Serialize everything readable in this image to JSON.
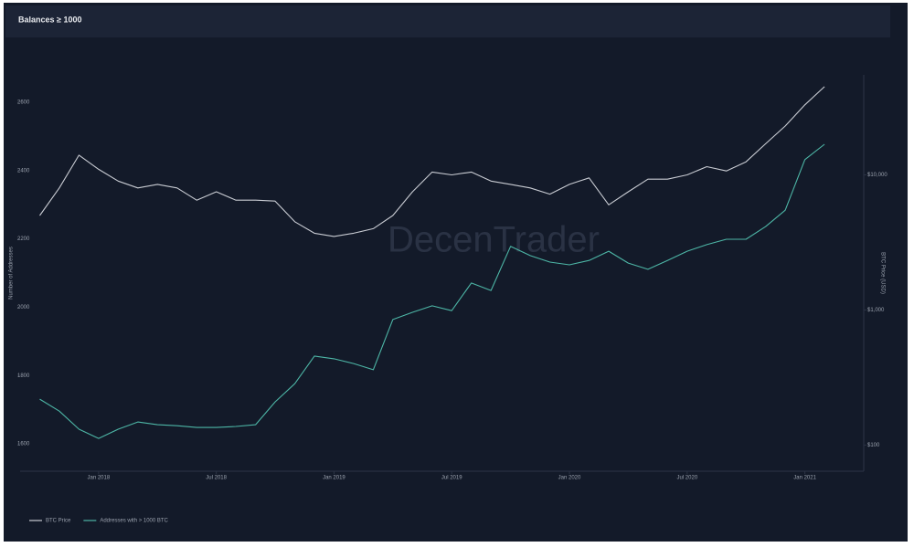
{
  "chart_data": {
    "type": "line",
    "title": "Balances ≥ 1000",
    "watermark": "DecenTrader",
    "ylabel": "Number of Addresses",
    "y2label": "BTC Price (USD)",
    "x": [
      "2017-10",
      "2017-11",
      "2017-12",
      "2018-01",
      "2018-02",
      "2018-03",
      "2018-04",
      "2018-05",
      "2018-06",
      "2018-07",
      "2018-08",
      "2018-09",
      "2018-10",
      "2018-11",
      "2018-12",
      "2019-01",
      "2019-02",
      "2019-03",
      "2019-04",
      "2019-05",
      "2019-06",
      "2019-07",
      "2019-08",
      "2019-09",
      "2019-10",
      "2019-11",
      "2019-12",
      "2020-01",
      "2020-02",
      "2020-03",
      "2020-04",
      "2020-05",
      "2020-06",
      "2020-07",
      "2020-08",
      "2020-09",
      "2020-10",
      "2020-11",
      "2020-12",
      "2021-01",
      "2021-02"
    ],
    "series": [
      {
        "name": "BTC Price",
        "color": "#c9ccd3",
        "axis": "y2",
        "values": [
          5000,
          8000,
          14000,
          11000,
          9000,
          8000,
          8500,
          8000,
          6500,
          7500,
          6500,
          6500,
          6400,
          4500,
          3700,
          3500,
          3700,
          4000,
          5000,
          7500,
          10500,
          10000,
          10500,
          9000,
          8500,
          8000,
          7200,
          8500,
          9500,
          6000,
          7500,
          9300,
          9300,
          10000,
          11500,
          10700,
          12500,
          17000,
          23000,
          33000,
          45000
        ]
      },
      {
        "name": "Addresses with > 1000 BTC",
        "color": "#4db6a6",
        "values": [
          1731,
          1696,
          1643,
          1616,
          1643,
          1664,
          1656,
          1653,
          1648,
          1648,
          1651,
          1656,
          1723,
          1776,
          1857,
          1849,
          1835,
          1817,
          1964,
          1985,
          2004,
          1990,
          2071,
          2049,
          2178,
          2151,
          2132,
          2124,
          2137,
          2164,
          2129,
          2111,
          2137,
          2164,
          2183,
          2199,
          2199,
          2236,
          2284,
          2432,
          2477
        ]
      }
    ],
    "xlim": [
      "2017-09",
      "2021-04"
    ],
    "xticks": [
      {
        "value": "2018-01",
        "label": "Jan 2018"
      },
      {
        "value": "2018-07",
        "label": "Jul 2018"
      },
      {
        "value": "2019-01",
        "label": "Jan 2019"
      },
      {
        "value": "2019-07",
        "label": "Jul 2019"
      },
      {
        "value": "2020-01",
        "label": "Jan 2020"
      },
      {
        "value": "2020-07",
        "label": "Jul 2020"
      },
      {
        "value": "2021-01",
        "label": "Jan 2021"
      }
    ],
    "ylim": [
      1520,
      2680
    ],
    "yticks": [
      1600,
      1800,
      2000,
      2200,
      2400,
      2600
    ],
    "y2lim": [
      64,
      55000
    ],
    "y2scale": "log",
    "y2ticks": [
      {
        "value": 100,
        "label": "$100"
      },
      {
        "value": 1000,
        "label": "$1,000"
      },
      {
        "value": 10000,
        "label": "$10,000"
      }
    ],
    "legend": "bottom-left"
  }
}
